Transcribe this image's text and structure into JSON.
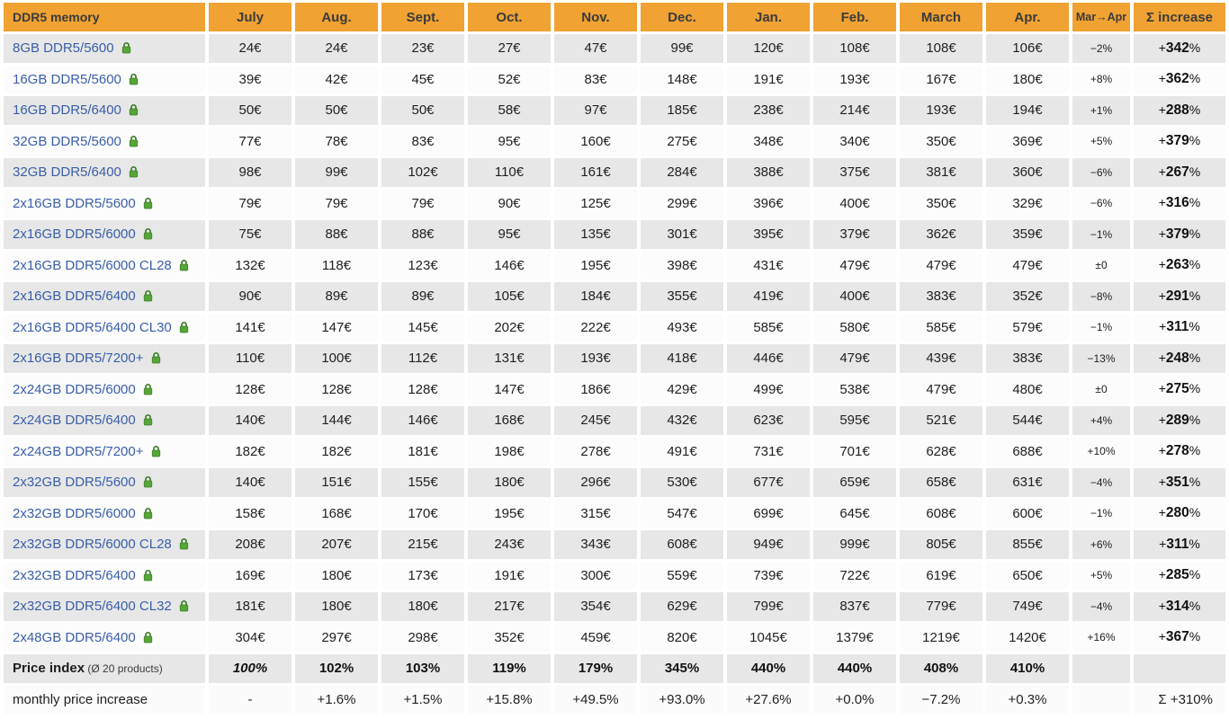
{
  "colors": {
    "header_bg": "#F0A232",
    "header_text": "#3B3B3B",
    "row_gray": "#E7E7E7",
    "row_white": "#FCFCFC",
    "link_blue": "#3A5EA8",
    "lock_green": "#55A637",
    "lock_green_dark": "#3E7D2C"
  },
  "table": {
    "header": {
      "product": "DDR5 memory",
      "months": [
        "July",
        "Aug.",
        "Sept.",
        "Oct.",
        "Nov.",
        "Dec.",
        "Jan.",
        "Feb.",
        "March",
        "Apr."
      ],
      "mar_apr": "Mar→Apr",
      "sum": "Σ increase"
    },
    "products": [
      {
        "name": "8GB DDR5/5600",
        "prices": [
          "24€",
          "24€",
          "23€",
          "27€",
          "47€",
          "99€",
          "120€",
          "108€",
          "108€",
          "106€"
        ],
        "mar_apr": "−2%",
        "sum": "+342%"
      },
      {
        "name": "16GB DDR5/5600",
        "prices": [
          "39€",
          "42€",
          "45€",
          "52€",
          "83€",
          "148€",
          "191€",
          "193€",
          "167€",
          "180€"
        ],
        "mar_apr": "+8%",
        "sum": "+362%"
      },
      {
        "name": "16GB DDR5/6400",
        "prices": [
          "50€",
          "50€",
          "50€",
          "58€",
          "97€",
          "185€",
          "238€",
          "214€",
          "193€",
          "194€"
        ],
        "mar_apr": "+1%",
        "sum": "+288%"
      },
      {
        "name": "32GB DDR5/5600",
        "prices": [
          "77€",
          "78€",
          "83€",
          "95€",
          "160€",
          "275€",
          "348€",
          "340€",
          "350€",
          "369€"
        ],
        "mar_apr": "+5%",
        "sum": "+379%"
      },
      {
        "name": "32GB DDR5/6400",
        "prices": [
          "98€",
          "99€",
          "102€",
          "110€",
          "161€",
          "284€",
          "388€",
          "375€",
          "381€",
          "360€"
        ],
        "mar_apr": "−6%",
        "sum": "+267%"
      },
      {
        "name": "2x16GB DDR5/5600",
        "prices": [
          "79€",
          "79€",
          "79€",
          "90€",
          "125€",
          "299€",
          "396€",
          "400€",
          "350€",
          "329€"
        ],
        "mar_apr": "−6%",
        "sum": "+316%"
      },
      {
        "name": "2x16GB DDR5/6000",
        "prices": [
          "75€",
          "88€",
          "88€",
          "95€",
          "135€",
          "301€",
          "395€",
          "379€",
          "362€",
          "359€"
        ],
        "mar_apr": "−1%",
        "sum": "+379%"
      },
      {
        "name": "2x16GB DDR5/6000 CL28",
        "prices": [
          "132€",
          "118€",
          "123€",
          "146€",
          "195€",
          "398€",
          "431€",
          "479€",
          "479€",
          "479€"
        ],
        "mar_apr": "±0",
        "sum": "+263%"
      },
      {
        "name": "2x16GB DDR5/6400",
        "prices": [
          "90€",
          "89€",
          "89€",
          "105€",
          "184€",
          "355€",
          "419€",
          "400€",
          "383€",
          "352€"
        ],
        "mar_apr": "−8%",
        "sum": "+291%"
      },
      {
        "name": "2x16GB DDR5/6400 CL30",
        "prices": [
          "141€",
          "147€",
          "145€",
          "202€",
          "222€",
          "493€",
          "585€",
          "580€",
          "585€",
          "579€"
        ],
        "mar_apr": "−1%",
        "sum": "+311%"
      },
      {
        "name": "2x16GB DDR5/7200+",
        "prices": [
          "110€",
          "100€",
          "112€",
          "131€",
          "193€",
          "418€",
          "446€",
          "479€",
          "439€",
          "383€"
        ],
        "mar_apr": "−13%",
        "sum": "+248%"
      },
      {
        "name": "2x24GB DDR5/6000",
        "prices": [
          "128€",
          "128€",
          "128€",
          "147€",
          "186€",
          "429€",
          "499€",
          "538€",
          "479€",
          "480€"
        ],
        "mar_apr": "±0",
        "sum": "+275%"
      },
      {
        "name": "2x24GB DDR5/6400",
        "prices": [
          "140€",
          "144€",
          "146€",
          "168€",
          "245€",
          "432€",
          "623€",
          "595€",
          "521€",
          "544€"
        ],
        "mar_apr": "+4%",
        "sum": "+289%"
      },
      {
        "name": "2x24GB DDR5/7200+",
        "prices": [
          "182€",
          "182€",
          "181€",
          "198€",
          "278€",
          "491€",
          "731€",
          "701€",
          "628€",
          "688€"
        ],
        "mar_apr": "+10%",
        "sum": "+278%"
      },
      {
        "name": "2x32GB DDR5/5600",
        "prices": [
          "140€",
          "151€",
          "155€",
          "180€",
          "296€",
          "530€",
          "677€",
          "659€",
          "658€",
          "631€"
        ],
        "mar_apr": "−4%",
        "sum": "+351%"
      },
      {
        "name": "2x32GB DDR5/6000",
        "prices": [
          "158€",
          "168€",
          "170€",
          "195€",
          "315€",
          "547€",
          "699€",
          "645€",
          "608€",
          "600€"
        ],
        "mar_apr": "−1%",
        "sum": "+280%"
      },
      {
        "name": "2x32GB DDR5/6000 CL28",
        "prices": [
          "208€",
          "207€",
          "215€",
          "243€",
          "343€",
          "608€",
          "949€",
          "999€",
          "805€",
          "855€"
        ],
        "mar_apr": "+6%",
        "sum": "+311%"
      },
      {
        "name": "2x32GB DDR5/6400",
        "prices": [
          "169€",
          "180€",
          "173€",
          "191€",
          "300€",
          "559€",
          "739€",
          "722€",
          "619€",
          "650€"
        ],
        "mar_apr": "+5%",
        "sum": "+285%"
      },
      {
        "name": "2x32GB DDR5/6400 CL32",
        "prices": [
          "181€",
          "180€",
          "180€",
          "217€",
          "354€",
          "629€",
          "799€",
          "837€",
          "779€",
          "749€"
        ],
        "mar_apr": "−4%",
        "sum": "+314%"
      },
      {
        "name": "2x48GB DDR5/6400",
        "prices": [
          "304€",
          "297€",
          "298€",
          "352€",
          "459€",
          "820€",
          "1045€",
          "1379€",
          "1219€",
          "1420€"
        ],
        "mar_apr": "+16%",
        "sum": "+367%"
      }
    ],
    "price_index": {
      "label": "Price index",
      "sublabel": " (Ø 20 products)",
      "values": [
        "100%",
        "102%",
        "103%",
        "119%",
        "179%",
        "345%",
        "440%",
        "440%",
        "408%",
        "410%"
      ]
    },
    "monthly": {
      "label": "monthly price increase",
      "values": [
        "-",
        "+1.6%",
        "+1.5%",
        "+15.8%",
        "+49.5%",
        "+93.0%",
        "+27.6%",
        "+0.0%",
        "−7.2%",
        "+0.3%"
      ],
      "total": "Σ +310%"
    }
  }
}
